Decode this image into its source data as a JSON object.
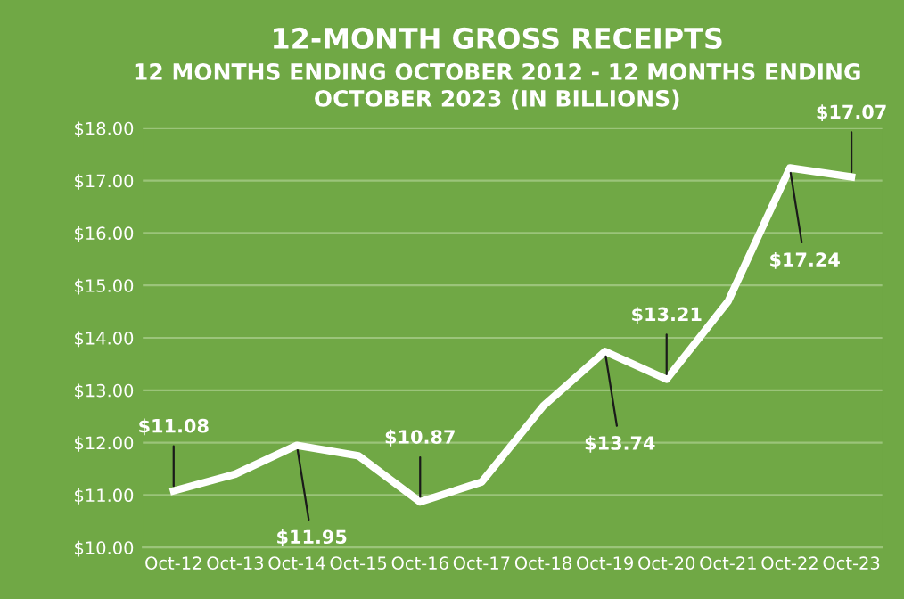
{
  "chart_data": {
    "type": "line",
    "title": "12-MONTH GROSS RECEIPTS",
    "subtitle": "12 MONTHS ENDING OCTOBER 2012 - 12 MONTHS ENDING\nOCTOBER 2023 (IN BILLIONS)",
    "categories": [
      "Oct-12",
      "Oct-13",
      "Oct-14",
      "Oct-15",
      "Oct-16",
      "Oct-17",
      "Oct-18",
      "Oct-19",
      "Oct-20",
      "Oct-21",
      "Oct-22",
      "Oct-23"
    ],
    "series": [
      {
        "color": "#ffffff",
        "values": [
          11.08,
          11.4,
          11.95,
          11.75,
          10.87,
          11.25,
          12.7,
          13.74,
          13.21,
          14.7,
          17.24,
          17.07
        ],
        "value_labels": [
          "$11.08",
          null,
          "$11.95",
          null,
          "$10.87",
          null,
          null,
          "$13.74",
          "$13.21",
          null,
          "$17.24",
          "$17.07"
        ]
      }
    ],
    "ylim": [
      10,
      18
    ],
    "yticks": [
      {
        "value": 10,
        "label": "$10.00"
      },
      {
        "value": 11,
        "label": "$11.00"
      },
      {
        "value": 12,
        "label": "$12.00"
      },
      {
        "value": 13,
        "label": "$13.00"
      },
      {
        "value": 14,
        "label": "$14.00"
      },
      {
        "value": 15,
        "label": "$15.00"
      },
      {
        "value": 16,
        "label": "$16.00"
      },
      {
        "value": 17,
        "label": "$17.00"
      },
      {
        "value": 18,
        "label": "$18.00"
      }
    ],
    "grid": "y",
    "legend": false,
    "marker": "none",
    "line_style": "solid"
  }
}
